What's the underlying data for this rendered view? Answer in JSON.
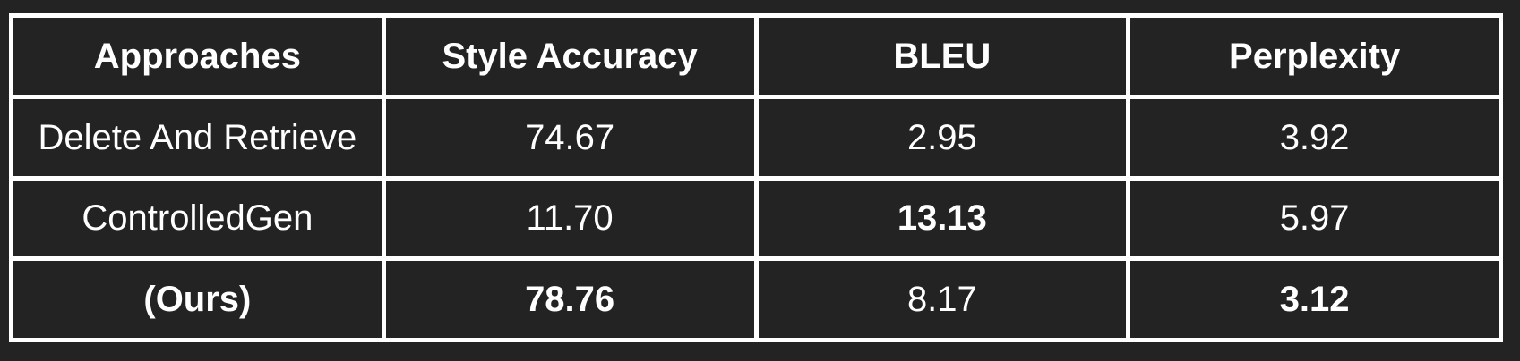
{
  "table": {
    "headers": [
      "Approaches",
      "Style Accuracy",
      "BLEU",
      "Perplexity"
    ],
    "rows": [
      {
        "approach": "Delete And Retrieve",
        "style_accuracy": "74.67",
        "bleu": "2.95",
        "perplexity": "3.92"
      },
      {
        "approach": "ControlledGen",
        "style_accuracy": "11.70",
        "bleu": "13.13",
        "perplexity": "5.97"
      },
      {
        "approach": "(Ours)",
        "style_accuracy": "78.76",
        "bleu": "8.17",
        "perplexity": "3.12"
      }
    ]
  },
  "colors": {
    "background": "#232323",
    "border": "#ffffff",
    "text": "#ffffff"
  }
}
